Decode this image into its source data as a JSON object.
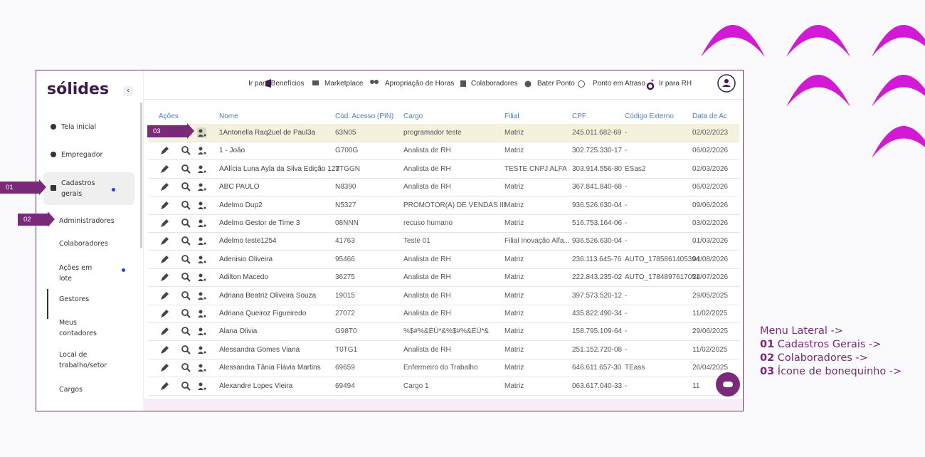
{
  "sidebar": {
    "logo": "sólides",
    "items": [
      "Tela inicial",
      "Empregador",
      "Cadastros gerais",
      "Administradores",
      "Colaboradores",
      "Ações em lote",
      "Gestores",
      "Meus contadores",
      "Local de trabalho/setor",
      "Cargos"
    ]
  },
  "topbar": {
    "items": [
      "Ir para Benefícios",
      "Marketplace",
      "Apropriação de Horas",
      "Colaboradores",
      "Bater Ponto",
      "Ponto em Atraso",
      "Ir para RH"
    ]
  },
  "steps": [
    "01",
    "02",
    "03"
  ],
  "table": {
    "headers": [
      "Ações",
      "Nome",
      "Cód. Acesso (PIN)",
      "Cargo",
      "Filial",
      "CPF",
      "Código Externo",
      "Data de Ac"
    ],
    "rows": [
      [
        "1Antonella Raq2uel de Paul3a",
        "63N05",
        "programador teste",
        "Matriz",
        "245.011.682-69",
        "-",
        "02/02/2023"
      ],
      [
        "1 - João",
        "G700G",
        "Analista de RH",
        "Matriz",
        "302.725.330-17",
        "-",
        "06/02/2026"
      ],
      [
        "AAlícia Luna Ayla da Silva Edição 123",
        "TTGGN",
        "Analista de RH",
        "TESTE CNPJ ALFA",
        "303.914.556-80",
        "ESas2",
        "02/03/2026"
      ],
      [
        "ABC PAULO",
        "N8390",
        "Analista de RH",
        "Matriz",
        "367.841.840-68",
        "-",
        "06/02/2026"
      ],
      [
        "Adelmo Dup2",
        "N5327",
        "PROMOTOR(A) DE VENDAS III",
        "Matriz",
        "936.526.630-04",
        "-",
        "09/06/2026"
      ],
      [
        "Adelmo Gestor de Time 3",
        "08NNN",
        "recuso humano",
        "Matriz",
        "516.753.164-06",
        "-",
        "03/02/2026"
      ],
      [
        "Adelmo teste1254",
        "41763",
        "Teste 01",
        "Filial Inovação Alfa...",
        "936.526.630-04",
        "-",
        "01/03/2026"
      ],
      [
        "Adenisio Oliveira",
        "95466",
        "Analista de RH",
        "Matriz",
        "236.113.645-76",
        "AUTO_1785861405394",
        "04/08/2026"
      ],
      [
        "Adilton Macedo",
        "36275",
        "Analista de RH",
        "Matriz",
        "222.843.235-02",
        "AUTO_1784897617051",
        "24/07/2026"
      ],
      [
        "Adriana Beatriz Oliveira Souza",
        "19015",
        "Analista de RH",
        "Matriz",
        "397.573.520-12",
        "-",
        "29/05/2025"
      ],
      [
        "Adriana Queiroz Figueiredo",
        "27072",
        "Analista de RH",
        "Matriz",
        "435.822.490-34",
        "-",
        "11/02/2025"
      ],
      [
        "Alana Olivia",
        "G98T0",
        "%$#%&ÉÜ*&%$#%&ÉÜ*&",
        "Matriz",
        "158.795.109-64",
        "-",
        "29/06/2025"
      ],
      [
        "Alessandra Gomes Viana",
        "T0TG1",
        "Analista de RH",
        "Matriz",
        "251.152.720-08",
        "-",
        "11/02/2025"
      ],
      [
        "Alessandra Tânia Flávia Martins",
        "69659",
        "Enfermeiro do Trabalho",
        "Matriz",
        "646.611.657-30",
        "TEass",
        "26/04/2025"
      ],
      [
        "Alexandre Lopes Vieira",
        "69494",
        "Cargo 1",
        "Matriz",
        "063.617.040-33",
        "-",
        "11"
      ]
    ]
  },
  "annotation": {
    "title": "Menu Lateral ->",
    "lines": [
      {
        "num": "01",
        "text": "Cadastros Gerais ->"
      },
      {
        "num": "02",
        "text": "Colaboradores ->"
      },
      {
        "num": "03",
        "text": "Ícone de bonequinho ->"
      }
    ]
  }
}
